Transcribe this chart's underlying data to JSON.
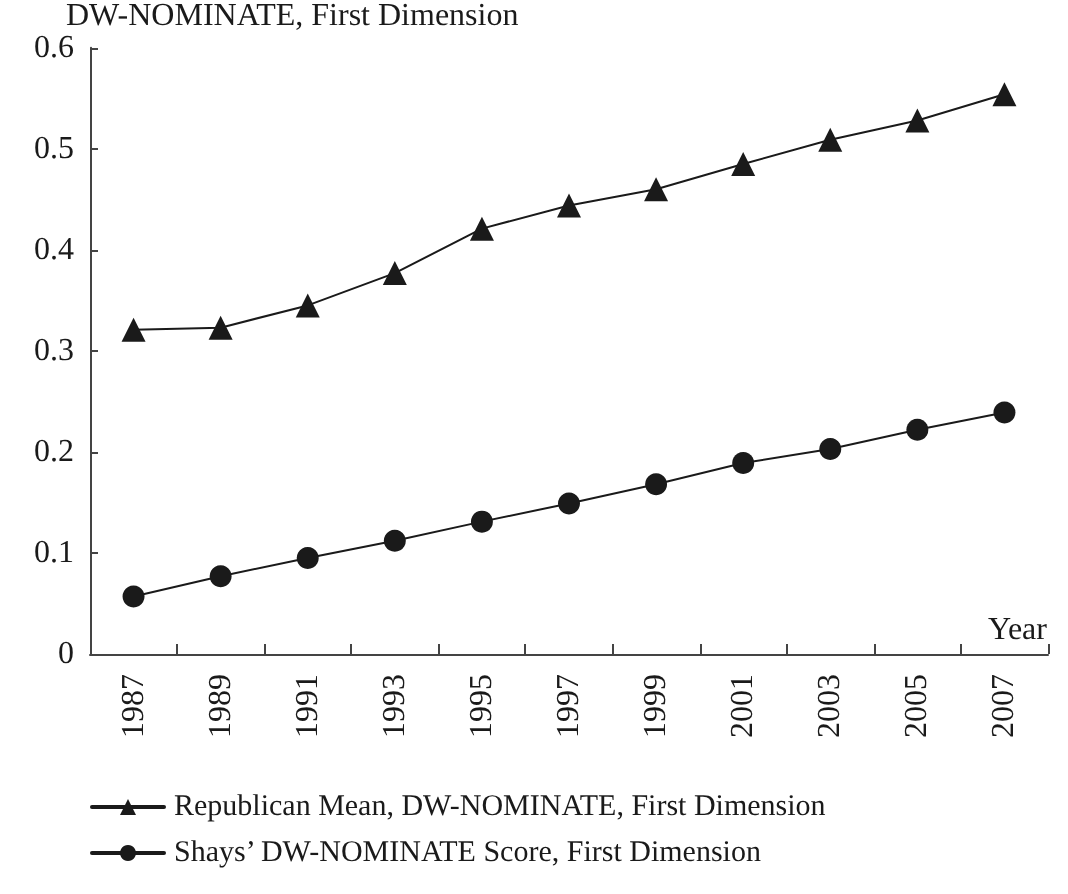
{
  "chart_data": {
    "type": "line",
    "ylabel": "DW-NOMINATE, First Dimension",
    "xlabel": "Year",
    "categories": [
      "1987",
      "1989",
      "1991",
      "1993",
      "1995",
      "1997",
      "1999",
      "2001",
      "2003",
      "2005",
      "2007"
    ],
    "series": [
      {
        "name": "Republican Mean, DW-NOMINATE, First Dimension",
        "color": "#1a1a1a",
        "marker": "triangle",
        "values": [
          0.321,
          0.323,
          0.345,
          0.377,
          0.421,
          0.444,
          0.46,
          0.485,
          0.509,
          0.528,
          0.554
        ]
      },
      {
        "name": "Shays’ DW-NOMINATE Score, First Dimension",
        "color": "#1a1a1a",
        "marker": "circle",
        "values": [
          0.057,
          0.077,
          0.095,
          0.112,
          0.131,
          0.149,
          0.168,
          0.189,
          0.203,
          0.222,
          0.239
        ]
      }
    ],
    "ylim": [
      0,
      0.6
    ],
    "yticks": [
      0,
      0.1,
      0.2,
      0.3,
      0.4,
      0.5,
      0.6
    ],
    "grid": false,
    "legend": "bottom"
  }
}
